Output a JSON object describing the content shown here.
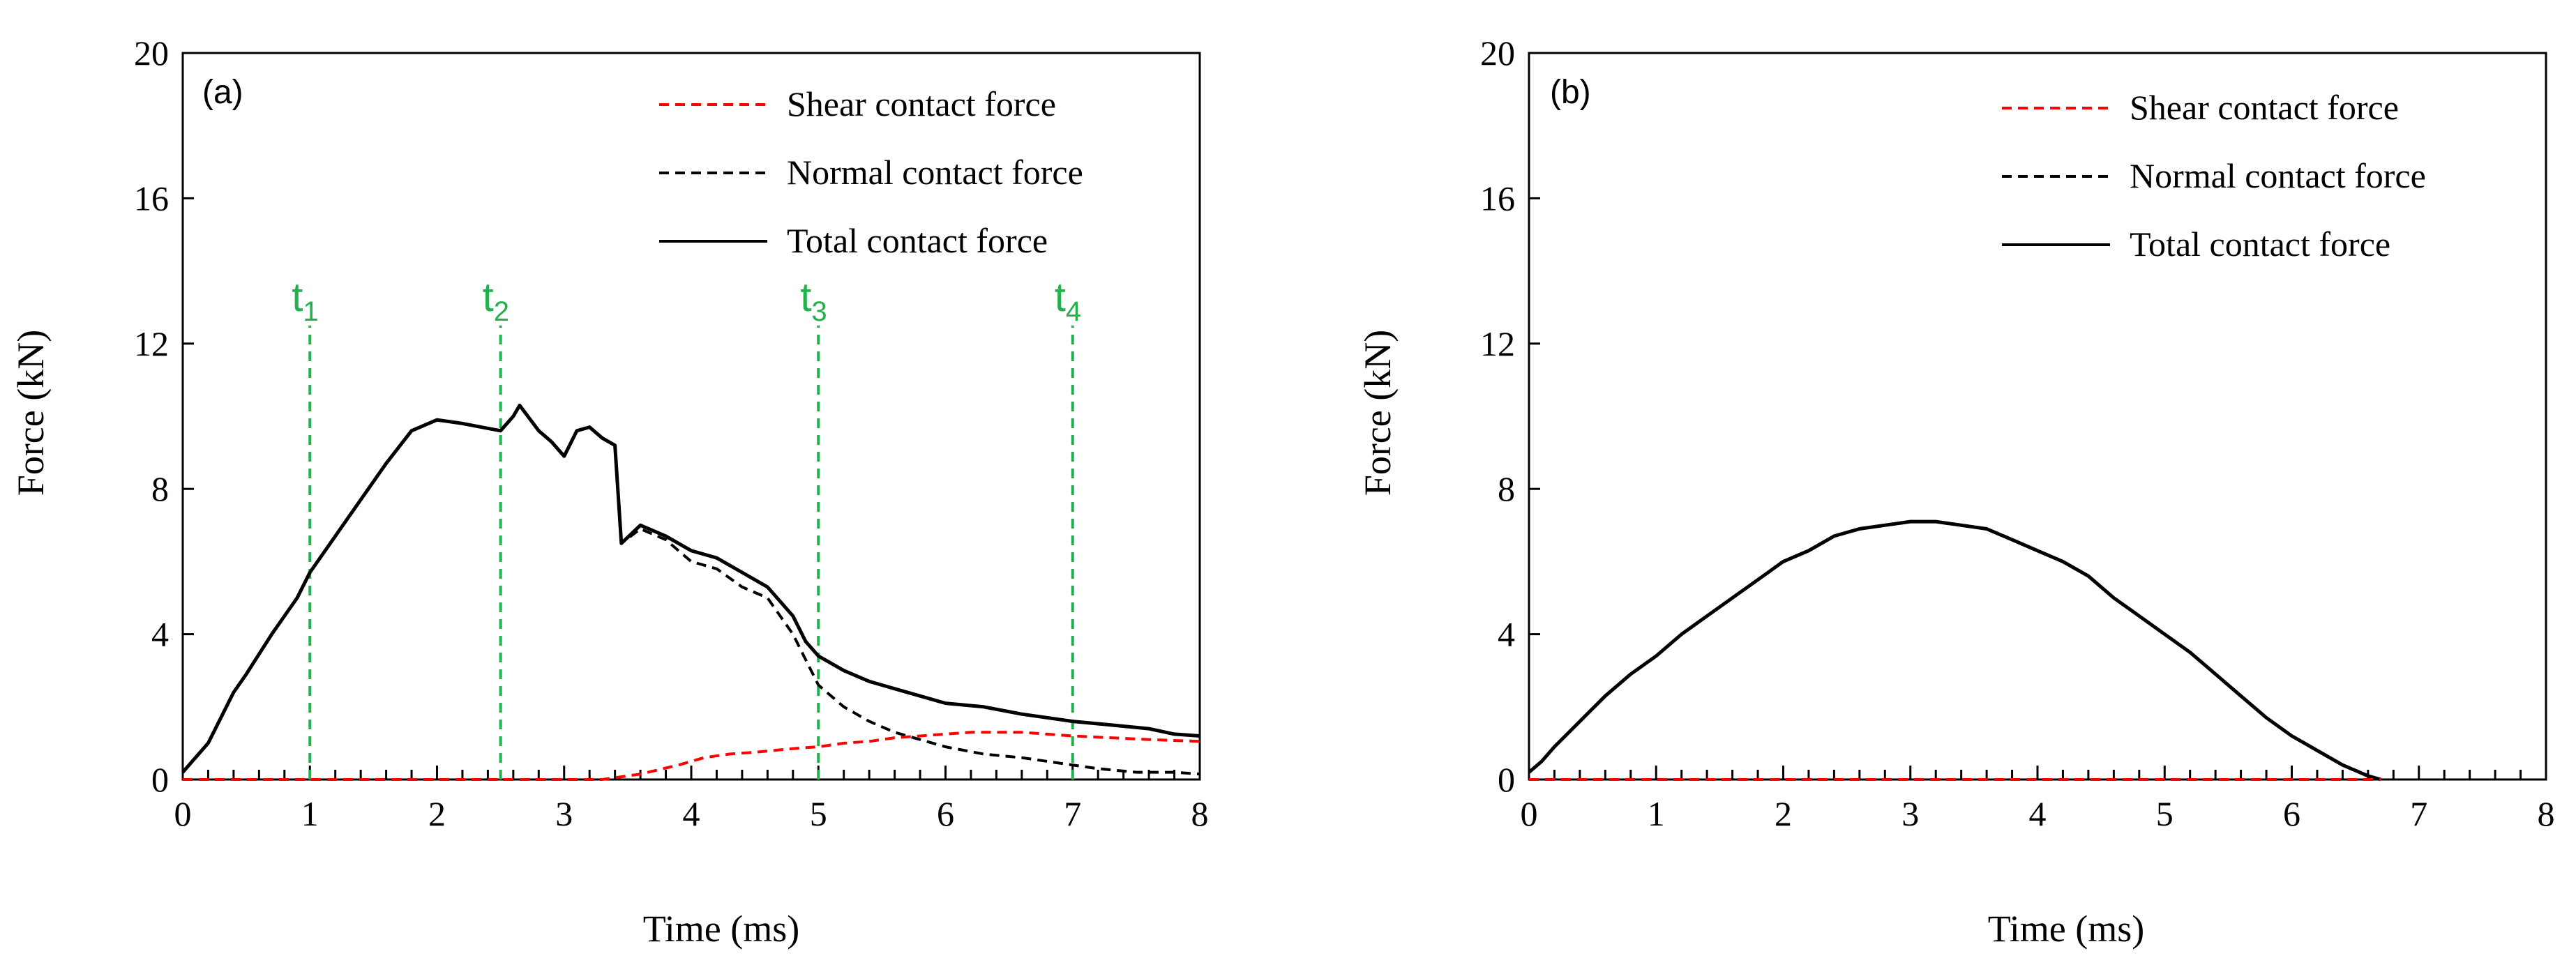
{
  "chart_data": [
    {
      "type": "line",
      "panel_label": "(a)",
      "xlabel": "Time (ms)",
      "ylabel": "Force (kN)",
      "xlim": [
        0,
        8
      ],
      "ylim": [
        0,
        20
      ],
      "x_ticks": [
        "0",
        "1",
        "2",
        "3",
        "4",
        "5",
        "6",
        "7",
        "8"
      ],
      "y_ticks": [
        "0",
        "4",
        "8",
        "12",
        "16",
        "20"
      ],
      "grid": false,
      "legend_position": "top-right",
      "series": [
        {
          "name": "Shear contact force",
          "color": "#ff0000",
          "style": "dashed",
          "points": [
            [
              0,
              0
            ],
            [
              3.3,
              0
            ],
            [
              3.6,
              0.15
            ],
            [
              3.9,
              0.4
            ],
            [
              4.1,
              0.6
            ],
            [
              4.3,
              0.7
            ],
            [
              4.5,
              0.75
            ],
            [
              4.8,
              0.85
            ],
            [
              5.0,
              0.9
            ],
            [
              5.2,
              1.0
            ],
            [
              5.4,
              1.05
            ],
            [
              5.6,
              1.15
            ],
            [
              5.8,
              1.2
            ],
            [
              6.0,
              1.25
            ],
            [
              6.2,
              1.3
            ],
            [
              6.4,
              1.3
            ],
            [
              6.6,
              1.3
            ],
            [
              6.8,
              1.25
            ],
            [
              7.0,
              1.2
            ],
            [
              7.3,
              1.15
            ],
            [
              7.6,
              1.1
            ],
            [
              8.0,
              1.05
            ]
          ]
        },
        {
          "name": "Normal contact force",
          "color": "#000000",
          "style": "dashed",
          "points": [
            [
              0,
              0.2
            ],
            [
              0.1,
              0.6
            ],
            [
              0.2,
              1.0
            ],
            [
              0.4,
              2.4
            ],
            [
              0.5,
              2.9
            ],
            [
              0.7,
              4.0
            ],
            [
              0.9,
              5.0
            ],
            [
              1.0,
              5.7
            ],
            [
              1.2,
              6.7
            ],
            [
              1.4,
              7.7
            ],
            [
              1.6,
              8.7
            ],
            [
              1.8,
              9.6
            ],
            [
              2.0,
              9.9
            ],
            [
              2.2,
              9.8
            ],
            [
              2.5,
              9.6
            ],
            [
              2.6,
              10.0
            ],
            [
              2.65,
              10.3
            ],
            [
              2.8,
              9.6
            ],
            [
              2.9,
              9.3
            ],
            [
              3.0,
              8.9
            ],
            [
              3.1,
              9.6
            ],
            [
              3.2,
              9.7
            ],
            [
              3.3,
              9.4
            ],
            [
              3.4,
              9.2
            ],
            [
              3.45,
              6.5
            ],
            [
              3.6,
              6.9
            ],
            [
              3.8,
              6.6
            ],
            [
              4.0,
              6.0
            ],
            [
              4.2,
              5.8
            ],
            [
              4.4,
              5.3
            ],
            [
              4.6,
              5.0
            ],
            [
              4.8,
              4.0
            ],
            [
              4.9,
              3.3
            ],
            [
              5.0,
              2.6
            ],
            [
              5.2,
              2.0
            ],
            [
              5.4,
              1.6
            ],
            [
              5.6,
              1.3
            ],
            [
              5.8,
              1.1
            ],
            [
              6.0,
              0.9
            ],
            [
              6.3,
              0.7
            ],
            [
              6.6,
              0.6
            ],
            [
              6.9,
              0.45
            ],
            [
              7.2,
              0.3
            ],
            [
              7.5,
              0.2
            ],
            [
              7.8,
              0.2
            ],
            [
              8.0,
              0.15
            ]
          ]
        },
        {
          "name": "Total contact force",
          "color": "#000000",
          "style": "solid",
          "points": [
            [
              0,
              0.2
            ],
            [
              0.1,
              0.6
            ],
            [
              0.2,
              1.0
            ],
            [
              0.4,
              2.4
            ],
            [
              0.5,
              2.9
            ],
            [
              0.7,
              4.0
            ],
            [
              0.9,
              5.0
            ],
            [
              1.0,
              5.7
            ],
            [
              1.2,
              6.7
            ],
            [
              1.4,
              7.7
            ],
            [
              1.6,
              8.7
            ],
            [
              1.8,
              9.6
            ],
            [
              2.0,
              9.9
            ],
            [
              2.2,
              9.8
            ],
            [
              2.5,
              9.6
            ],
            [
              2.6,
              10.0
            ],
            [
              2.65,
              10.3
            ],
            [
              2.8,
              9.6
            ],
            [
              2.9,
              9.3
            ],
            [
              3.0,
              8.9
            ],
            [
              3.1,
              9.6
            ],
            [
              3.2,
              9.7
            ],
            [
              3.3,
              9.4
            ],
            [
              3.4,
              9.2
            ],
            [
              3.45,
              6.5
            ],
            [
              3.6,
              7.0
            ],
            [
              3.8,
              6.7
            ],
            [
              4.0,
              6.3
            ],
            [
              4.2,
              6.1
            ],
            [
              4.4,
              5.7
            ],
            [
              4.6,
              5.3
            ],
            [
              4.8,
              4.5
            ],
            [
              4.9,
              3.8
            ],
            [
              5.0,
              3.4
            ],
            [
              5.2,
              3.0
            ],
            [
              5.4,
              2.7
            ],
            [
              5.6,
              2.5
            ],
            [
              5.8,
              2.3
            ],
            [
              6.0,
              2.1
            ],
            [
              6.3,
              2.0
            ],
            [
              6.6,
              1.8
            ],
            [
              7.0,
              1.6
            ],
            [
              7.3,
              1.5
            ],
            [
              7.6,
              1.4
            ],
            [
              7.8,
              1.25
            ],
            [
              8.0,
              1.2
            ]
          ]
        }
      ],
      "annotations": [
        {
          "label": "t",
          "sub": "1",
          "x": 1
        },
        {
          "label": "t",
          "sub": "2",
          "x": 2.5
        },
        {
          "label": "t",
          "sub": "3",
          "x": 5
        },
        {
          "label": "t",
          "sub": "4",
          "x": 7
        }
      ],
      "annotation_color": "#22b14c"
    },
    {
      "type": "line",
      "panel_label": "(b)",
      "xlabel": "Time (ms)",
      "ylabel": "Force (kN)",
      "xlim": [
        0,
        8
      ],
      "ylim": [
        0,
        20
      ],
      "x_ticks": [
        "0",
        "1",
        "2",
        "3",
        "4",
        "5",
        "6",
        "7",
        "8"
      ],
      "y_ticks": [
        "0",
        "4",
        "8",
        "12",
        "16",
        "20"
      ],
      "grid": false,
      "legend_position": "top-right",
      "series": [
        {
          "name": "Shear contact force",
          "color": "#ff0000",
          "style": "dashed",
          "points": [
            [
              0,
              0
            ],
            [
              6.7,
              0
            ]
          ]
        },
        {
          "name": "Normal contact force",
          "color": "#000000",
          "style": "dashed",
          "points": [
            [
              0,
              0.2
            ],
            [
              0.1,
              0.5
            ],
            [
              0.2,
              0.9
            ],
            [
              0.4,
              1.6
            ],
            [
              0.6,
              2.3
            ],
            [
              0.8,
              2.9
            ],
            [
              1.0,
              3.4
            ],
            [
              1.2,
              4.0
            ],
            [
              1.4,
              4.5
            ],
            [
              1.6,
              5.0
            ],
            [
              1.8,
              5.5
            ],
            [
              2.0,
              6.0
            ],
            [
              2.2,
              6.3
            ],
            [
              2.4,
              6.7
            ],
            [
              2.6,
              6.9
            ],
            [
              2.8,
              7.0
            ],
            [
              3.0,
              7.1
            ],
            [
              3.2,
              7.1
            ],
            [
              3.4,
              7.0
            ],
            [
              3.6,
              6.9
            ],
            [
              3.8,
              6.6
            ],
            [
              4.0,
              6.3
            ],
            [
              4.2,
              6.0
            ],
            [
              4.4,
              5.6
            ],
            [
              4.6,
              5.0
            ],
            [
              4.8,
              4.5
            ],
            [
              5.0,
              4.0
            ],
            [
              5.2,
              3.5
            ],
            [
              5.4,
              2.9
            ],
            [
              5.6,
              2.3
            ],
            [
              5.8,
              1.7
            ],
            [
              6.0,
              1.2
            ],
            [
              6.2,
              0.8
            ],
            [
              6.4,
              0.4
            ],
            [
              6.6,
              0.1
            ],
            [
              6.7,
              0
            ]
          ]
        },
        {
          "name": "Total contact force",
          "color": "#000000",
          "style": "solid",
          "points": [
            [
              0,
              0.2
            ],
            [
              0.1,
              0.5
            ],
            [
              0.2,
              0.9
            ],
            [
              0.4,
              1.6
            ],
            [
              0.6,
              2.3
            ],
            [
              0.8,
              2.9
            ],
            [
              1.0,
              3.4
            ],
            [
              1.2,
              4.0
            ],
            [
              1.4,
              4.5
            ],
            [
              1.6,
              5.0
            ],
            [
              1.8,
              5.5
            ],
            [
              2.0,
              6.0
            ],
            [
              2.2,
              6.3
            ],
            [
              2.4,
              6.7
            ],
            [
              2.6,
              6.9
            ],
            [
              2.8,
              7.0
            ],
            [
              3.0,
              7.1
            ],
            [
              3.2,
              7.1
            ],
            [
              3.4,
              7.0
            ],
            [
              3.6,
              6.9
            ],
            [
              3.8,
              6.6
            ],
            [
              4.0,
              6.3
            ],
            [
              4.2,
              6.0
            ],
            [
              4.4,
              5.6
            ],
            [
              4.6,
              5.0
            ],
            [
              4.8,
              4.5
            ],
            [
              5.0,
              4.0
            ],
            [
              5.2,
              3.5
            ],
            [
              5.4,
              2.9
            ],
            [
              5.6,
              2.3
            ],
            [
              5.8,
              1.7
            ],
            [
              6.0,
              1.2
            ],
            [
              6.2,
              0.8
            ],
            [
              6.4,
              0.4
            ],
            [
              6.6,
              0.1
            ],
            [
              6.7,
              0
            ]
          ]
        }
      ],
      "annotations": []
    }
  ]
}
